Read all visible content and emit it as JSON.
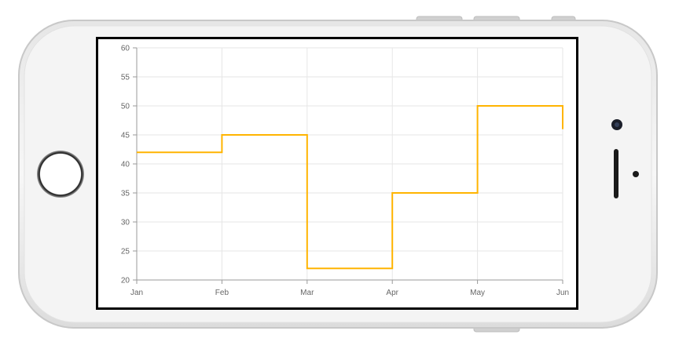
{
  "device": {
    "model": "iPhone",
    "orientation": "landscape",
    "body_color": "#f2f2f2",
    "frame_color": "#d9d9d9",
    "screen_border_color": "#000000"
  },
  "chart_data": {
    "type": "line",
    "step": true,
    "title": "",
    "xlabel": "",
    "ylabel": "",
    "categories": [
      "Jan",
      "Feb",
      "Mar",
      "Apr",
      "May",
      "Jun"
    ],
    "series": [
      {
        "values": [
          42,
          45,
          22,
          35,
          50,
          46
        ],
        "color": "#ffb400"
      }
    ],
    "ylim": [
      20,
      60
    ],
    "yticks": [
      20,
      25,
      30,
      35,
      40,
      45,
      50,
      55,
      60
    ],
    "grid": true,
    "legend": "none"
  }
}
